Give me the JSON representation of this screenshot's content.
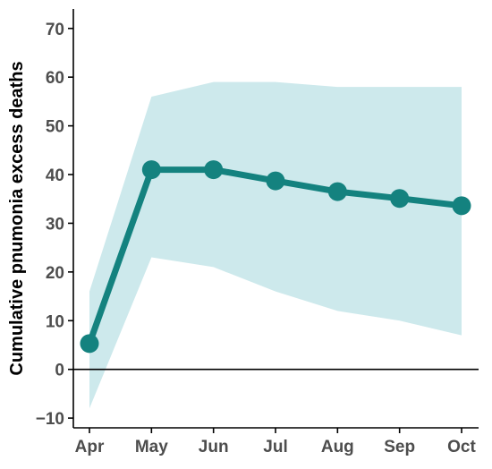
{
  "chart_data": {
    "type": "line",
    "title": "",
    "xlabel": "",
    "ylabel": "Cumulative pnumonia excess deaths",
    "categories": [
      "Apr",
      "May",
      "Jun",
      "Jul",
      "Aug",
      "Sep",
      "Oct"
    ],
    "series": [
      {
        "values": [
          5.3,
          41.0,
          41.0,
          38.7,
          36.5,
          35.1,
          33.6
        ],
        "lower": [
          -8.0,
          23.0,
          21.0,
          16.0,
          12.0,
          10.0,
          7.0
        ],
        "upper": [
          16.0,
          56.0,
          59.0,
          59.0,
          58.0,
          58.0,
          58.0
        ]
      }
    ],
    "ylim": [
      -12,
      74
    ],
    "yticks": [
      -10,
      0,
      10,
      20,
      30,
      40,
      50,
      60,
      70
    ],
    "ytick_labels": [
      "−10",
      "0",
      "10",
      "20",
      "30",
      "40",
      "50",
      "60",
      "70"
    ],
    "reference_line_y": 0,
    "grid": false,
    "legend": "none",
    "colors": {
      "line": "#14827f",
      "ribbon": "#cde9ec",
      "axis": "#000000",
      "tick_text": "#4d4d4d"
    }
  }
}
